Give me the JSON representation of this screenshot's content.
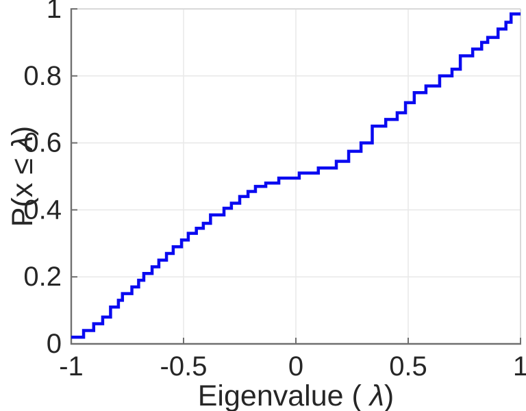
{
  "figure": {
    "background": "#ffffff"
  },
  "chart_data": {
    "type": "line",
    "subtype": "empirical-cdf-stairs",
    "title": "",
    "xlabel": "Eigenvalue ( λ)",
    "ylabel": "P(x ≤ λ)",
    "xlim": [
      -1,
      1
    ],
    "ylim": [
      0,
      1
    ],
    "x_ticks": [
      -1,
      -0.5,
      0,
      0.5,
      1
    ],
    "x_tick_labels": [
      "-1",
      "-0.5",
      "0",
      "0.5",
      "1"
    ],
    "y_ticks": [
      0,
      0.2,
      0.4,
      0.6,
      0.8,
      1
    ],
    "y_tick_labels": [
      "0",
      "0.2",
      "0.4",
      "0.6",
      "0.8",
      "1"
    ],
    "grid": true,
    "legend": null,
    "line_color": "#0a0af0",
    "line_width": 4.5,
    "axis_color": "#6f6f6f",
    "box_light_color": "#d9d9d9",
    "grid_color": "#e9e9e9",
    "text_color": "#262626",
    "start_point": {
      "x": -1.0,
      "y": 0.02
    },
    "end_x": 1.0,
    "steps": [
      {
        "x": -0.945,
        "y": 0.04
      },
      {
        "x": -0.9,
        "y": 0.06
      },
      {
        "x": -0.86,
        "y": 0.08
      },
      {
        "x": -0.825,
        "y": 0.11
      },
      {
        "x": -0.79,
        "y": 0.13
      },
      {
        "x": -0.772,
        "y": 0.15
      },
      {
        "x": -0.73,
        "y": 0.17
      },
      {
        "x": -0.7,
        "y": 0.19
      },
      {
        "x": -0.677,
        "y": 0.21
      },
      {
        "x": -0.64,
        "y": 0.23
      },
      {
        "x": -0.61,
        "y": 0.25
      },
      {
        "x": -0.576,
        "y": 0.27
      },
      {
        "x": -0.546,
        "y": 0.29
      },
      {
        "x": -0.509,
        "y": 0.31
      },
      {
        "x": -0.479,
        "y": 0.33
      },
      {
        "x": -0.443,
        "y": 0.345
      },
      {
        "x": -0.412,
        "y": 0.36
      },
      {
        "x": -0.38,
        "y": 0.385
      },
      {
        "x": -0.32,
        "y": 0.405
      },
      {
        "x": -0.287,
        "y": 0.42
      },
      {
        "x": -0.25,
        "y": 0.44
      },
      {
        "x": -0.213,
        "y": 0.455
      },
      {
        "x": -0.18,
        "y": 0.47
      },
      {
        "x": -0.134,
        "y": 0.48
      },
      {
        "x": -0.076,
        "y": 0.495
      },
      {
        "x": 0.015,
        "y": 0.51
      },
      {
        "x": 0.1,
        "y": 0.525
      },
      {
        "x": 0.18,
        "y": 0.545
      },
      {
        "x": 0.235,
        "y": 0.575
      },
      {
        "x": 0.29,
        "y": 0.6
      },
      {
        "x": 0.34,
        "y": 0.65
      },
      {
        "x": 0.4,
        "y": 0.67
      },
      {
        "x": 0.451,
        "y": 0.69
      },
      {
        "x": 0.488,
        "y": 0.72
      },
      {
        "x": 0.527,
        "y": 0.75
      },
      {
        "x": 0.579,
        "y": 0.77
      },
      {
        "x": 0.64,
        "y": 0.8
      },
      {
        "x": 0.695,
        "y": 0.82
      },
      {
        "x": 0.732,
        "y": 0.86
      },
      {
        "x": 0.787,
        "y": 0.88
      },
      {
        "x": 0.827,
        "y": 0.9
      },
      {
        "x": 0.854,
        "y": 0.915
      },
      {
        "x": 0.9,
        "y": 0.94
      },
      {
        "x": 0.935,
        "y": 0.96
      },
      {
        "x": 0.958,
        "y": 0.985
      }
    ]
  }
}
